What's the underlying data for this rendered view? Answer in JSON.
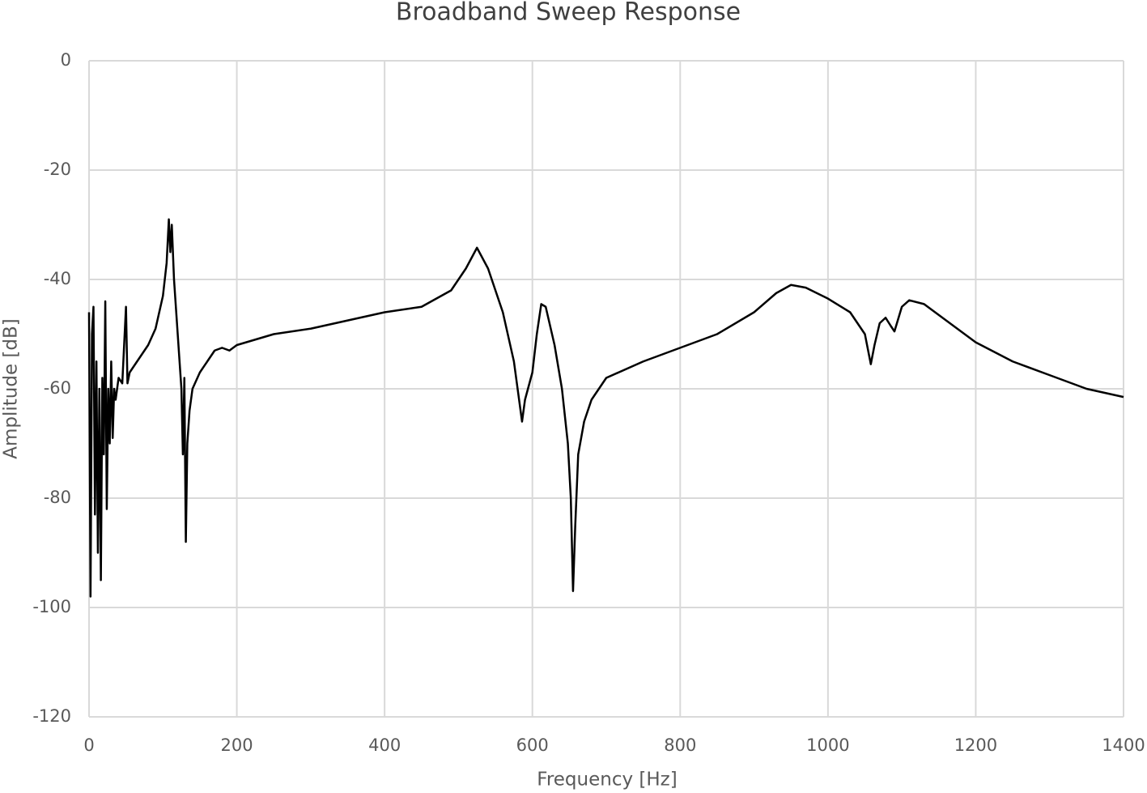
{
  "chart_data": {
    "type": "line",
    "title": "Broadband Sweep Response",
    "x_label": "Frequency [Hz]",
    "y_label": "Amplitude [dB]",
    "xlim": [
      0,
      1400
    ],
    "ylim": [
      -120,
      0
    ],
    "xticks": [
      0,
      200,
      400,
      600,
      800,
      1000,
      1200,
      1400
    ],
    "yticks": [
      0,
      -20,
      -40,
      -60,
      -80,
      -100,
      -120
    ],
    "grid": true,
    "x": [
      0,
      2,
      4,
      6,
      8,
      10,
      12,
      14,
      16,
      18,
      20,
      22,
      24,
      26,
      28,
      30,
      32,
      34,
      36,
      40,
      45,
      50,
      52,
      55,
      60,
      70,
      80,
      90,
      100,
      105,
      108,
      110,
      112,
      115,
      120,
      125,
      127,
      129,
      131,
      133,
      136,
      140,
      150,
      160,
      170,
      180,
      190,
      200,
      250,
      300,
      350,
      400,
      450,
      490,
      510,
      525,
      540,
      560,
      575,
      582,
      586,
      590,
      600,
      606,
      612,
      618,
      630,
      640,
      648,
      652,
      655,
      658,
      662,
      670,
      680,
      700,
      750,
      800,
      850,
      900,
      930,
      950,
      970,
      1000,
      1030,
      1050,
      1058,
      1063,
      1070,
      1078,
      1085,
      1090,
      1100,
      1110,
      1130,
      1160,
      1200,
      1250,
      1300,
      1350,
      1400
    ],
    "series": [
      {
        "name": "Amplitude",
        "color": "#000000",
        "values": [
          -46,
          -98,
          -50,
          -45,
          -83,
          -55,
          -90,
          -60,
          -95,
          -58,
          -72,
          -44,
          -82,
          -60,
          -70,
          -55,
          -69,
          -60,
          -62,
          -58,
          -59,
          -45,
          -59,
          -57,
          -56,
          -54,
          -52,
          -49,
          -43,
          -37,
          -29,
          -35,
          -30,
          -40,
          -50,
          -60,
          -72,
          -58,
          -88,
          -70,
          -64,
          -60,
          -57,
          -55,
          -53,
          -52.5,
          -53,
          -52,
          -50,
          -49,
          -47.5,
          -46,
          -45,
          -42,
          -38,
          -34.2,
          -38,
          -46,
          -55,
          -62,
          -66,
          -62,
          -57,
          -50,
          -44.5,
          -45,
          -52,
          -60,
          -70,
          -80,
          -97,
          -85,
          -72,
          -66,
          -62,
          -58,
          -55,
          -52.5,
          -50,
          -46,
          -42.5,
          -41,
          -41.5,
          -43.5,
          -46,
          -50,
          -55.5,
          -52,
          -48,
          -47,
          -48.5,
          -49.5,
          -45,
          -43.8,
          -44.5,
          -47.5,
          -51.5,
          -55,
          -57.5,
          -60,
          -61.5
        ]
      }
    ]
  }
}
